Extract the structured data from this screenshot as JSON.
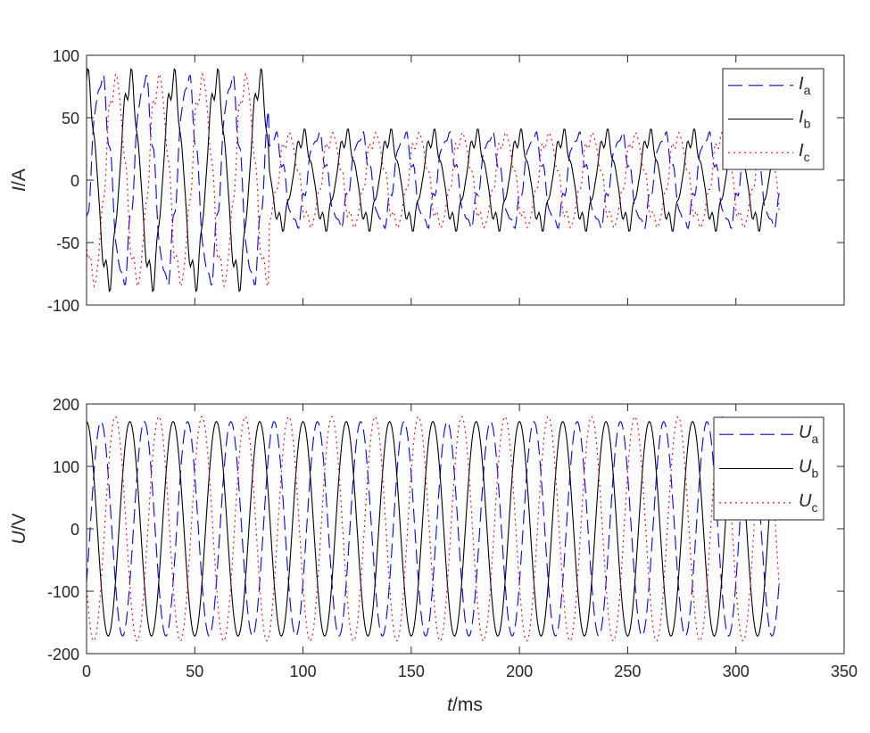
{
  "figure": {
    "xlabel": {
      "italic": "t",
      "rest": "/ms"
    }
  },
  "colors": {
    "a": "#0000ff",
    "b": "#000000",
    "c": "#ff0000",
    "axis": "#262626"
  },
  "chart_data": [
    {
      "type": "line",
      "ylabel": {
        "italic": "I",
        "rest": "/A"
      },
      "xlim": [
        0,
        350
      ],
      "ylim": [
        -100,
        100
      ],
      "xticks": [
        0,
        50,
        100,
        150,
        200,
        250,
        300,
        350
      ],
      "xtick_labels_shown": false,
      "yticks": [
        -100,
        -50,
        0,
        50,
        100
      ],
      "grid": false,
      "legend_position": "top-right",
      "sample_spacing_ms": 0.5,
      "series": [
        {
          "key": "a",
          "name": {
            "main": "I",
            "sub": "a"
          },
          "style": "dashed",
          "color": "#0000ff",
          "description": "50 Hz sinusoid, amplitude ~80 A for t<84 ms, ~35 A afterwards, with ripple; phase -120 deg",
          "segments": [
            {
              "t_start": 0,
              "t_end": 84,
              "amplitude": 80,
              "freq_hz": 50,
              "phase_deg": -120,
              "ripple": 8
            },
            {
              "t_start": 84,
              "t_end": 320,
              "amplitude": 35,
              "freq_hz": 50,
              "phase_deg": -120,
              "ripple": 5
            }
          ]
        },
        {
          "key": "b",
          "name": {
            "main": "I",
            "sub": "b"
          },
          "style": "solid",
          "color": "#000000",
          "segments": [
            {
              "t_start": 0,
              "t_end": 84,
              "amplitude": 80,
              "freq_hz": 50,
              "phase_deg": 0,
              "ripple": 8
            },
            {
              "t_start": 84,
              "t_end": 320,
              "amplitude": 35,
              "freq_hz": 50,
              "phase_deg": 0,
              "ripple": 5
            }
          ]
        },
        {
          "key": "c",
          "name": {
            "main": "I",
            "sub": "c"
          },
          "style": "dotted",
          "color": "#ff0000",
          "segments": [
            {
              "t_start": 0,
              "t_end": 84,
              "amplitude": 80,
              "freq_hz": 50,
              "phase_deg": 120,
              "ripple": 8
            },
            {
              "t_start": 84,
              "t_end": 320,
              "amplitude": 35,
              "freq_hz": 50,
              "phase_deg": 120,
              "ripple": 5
            }
          ]
        }
      ]
    },
    {
      "type": "line",
      "ylabel": {
        "italic": "U",
        "rest": "/V"
      },
      "xlim": [
        0,
        350
      ],
      "ylim": [
        -200,
        200
      ],
      "xticks": [
        0,
        50,
        100,
        150,
        200,
        250,
        300,
        350
      ],
      "xtick_labels_shown": true,
      "yticks": [
        -200,
        -100,
        0,
        100,
        200
      ],
      "grid": false,
      "legend_position": "top-right",
      "sample_spacing_ms": 0.5,
      "series": [
        {
          "key": "a",
          "name": {
            "main": "U",
            "sub": "a"
          },
          "style": "dashed",
          "color": "#0000ff",
          "segments": [
            {
              "t_start": 0,
              "t_end": 320,
              "amplitude": 172,
              "freq_hz": 50,
              "phase_deg": -120,
              "ripple": 0
            }
          ]
        },
        {
          "key": "b",
          "name": {
            "main": "U",
            "sub": "b"
          },
          "style": "solid",
          "color": "#000000",
          "segments": [
            {
              "t_start": 0,
              "t_end": 320,
              "amplitude": 172,
              "freq_hz": 50,
              "phase_deg": 0,
              "ripple": 0
            }
          ]
        },
        {
          "key": "c",
          "name": {
            "main": "U",
            "sub": "c"
          },
          "style": "dotted",
          "color": "#ff0000",
          "segments": [
            {
              "t_start": 0,
              "t_end": 320,
              "amplitude": 180,
              "freq_hz": 50,
              "phase_deg": 120,
              "ripple": 0
            }
          ]
        }
      ]
    }
  ]
}
